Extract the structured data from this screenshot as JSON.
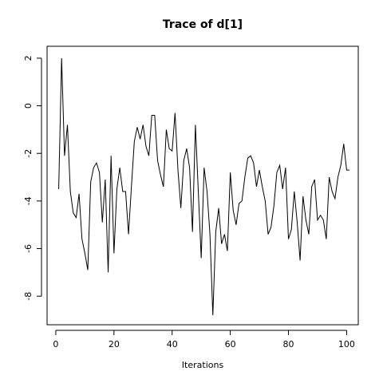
{
  "chart_data": {
    "type": "line",
    "title": "Trace of d[1]",
    "xlabel": "Iterations",
    "ylabel": "",
    "xlim": [
      -3,
      104
    ],
    "ylim": [
      -9.2,
      2.5
    ],
    "x_ticks": [
      0,
      20,
      40,
      60,
      80,
      100
    ],
    "y_ticks": [
      -8,
      -6,
      -4,
      -2,
      0,
      2
    ],
    "grid": false,
    "legend": "none",
    "line_color": "#000000",
    "series": [
      {
        "x": [
          1,
          2,
          3,
          4,
          5,
          6,
          7,
          8,
          9,
          10,
          11,
          12,
          13,
          14,
          15,
          16,
          17,
          18,
          19,
          20,
          21,
          22,
          23,
          24,
          25,
          26,
          27,
          28,
          29,
          30,
          31,
          32,
          33,
          34,
          35,
          36,
          37,
          38,
          39,
          40,
          41,
          42,
          43,
          44,
          45,
          46,
          47,
          48,
          49,
          50,
          51,
          52,
          53,
          54,
          55,
          56,
          57,
          58,
          59,
          60,
          61,
          62,
          63,
          64,
          65,
          66,
          67,
          68,
          69,
          70,
          71,
          72,
          73,
          74,
          75,
          76,
          77,
          78,
          79,
          80,
          81,
          82,
          83,
          84,
          85,
          86,
          87,
          88,
          89,
          90,
          91,
          92,
          93,
          94,
          95,
          96,
          97,
          98,
          99,
          100,
          101
        ],
        "values": [
          -3.5,
          2.0,
          -2.1,
          -0.8,
          -3.6,
          -4.5,
          -4.7,
          -3.7,
          -5.6,
          -6.2,
          -6.9,
          -3.2,
          -2.6,
          -2.4,
          -2.8,
          -4.9,
          -3.1,
          -7.0,
          -2.1,
          -6.2,
          -3.5,
          -2.6,
          -3.6,
          -3.6,
          -5.4,
          -3.4,
          -1.5,
          -0.9,
          -1.4,
          -0.8,
          -1.7,
          -2.1,
          -0.4,
          -0.4,
          -2.3,
          -2.9,
          -3.4,
          -1.0,
          -1.8,
          -1.9,
          -0.3,
          -2.7,
          -4.3,
          -2.3,
          -1.8,
          -2.6,
          -5.3,
          -0.8,
          -3.6,
          -6.4,
          -2.6,
          -3.6,
          -5.4,
          -8.8,
          -5.3,
          -4.3,
          -5.8,
          -5.4,
          -6.1,
          -2.8,
          -4.4,
          -5.0,
          -4.1,
          -4.0,
          -3.0,
          -2.2,
          -2.1,
          -2.4,
          -3.4,
          -2.7,
          -3.4,
          -4.0,
          -5.4,
          -5.1,
          -4.2,
          -2.8,
          -2.5,
          -3.5,
          -2.6,
          -5.6,
          -5.2,
          -3.6,
          -4.9,
          -6.5,
          -3.8,
          -4.8,
          -5.4,
          -3.4,
          -3.1,
          -4.8,
          -4.6,
          -4.8,
          -5.6,
          -3.0,
          -3.6,
          -3.9,
          -3.0,
          -2.5,
          -1.6,
          -2.7,
          -2.7
        ]
      }
    ]
  }
}
